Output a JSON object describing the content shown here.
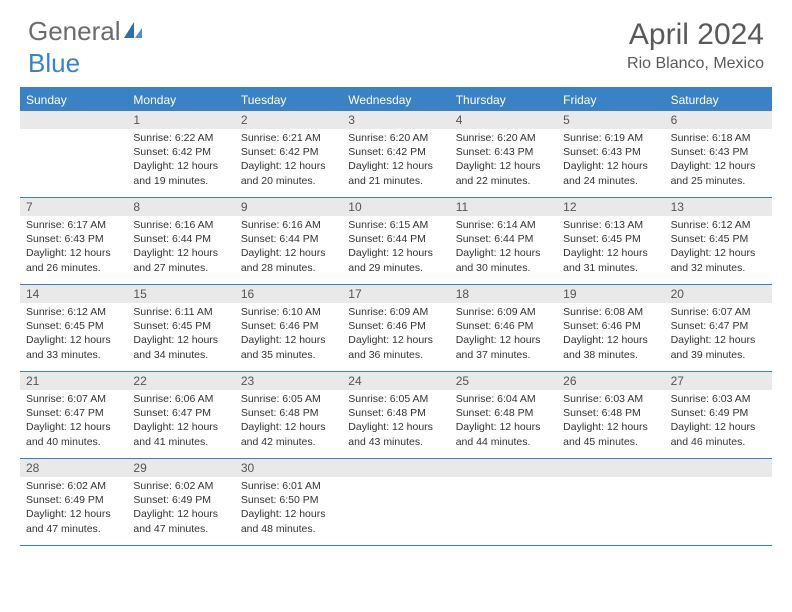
{
  "brand": {
    "part1": "General",
    "part2": "Blue"
  },
  "title": "April 2024",
  "location": "Rio Blanco, Mexico",
  "colors": {
    "accent": "#3b82c4",
    "header_bg": "#3b82c4",
    "daynum_bg": "#e9e9e9",
    "text": "#333333",
    "muted": "#5a5a5a",
    "page_bg": "#ffffff"
  },
  "day_names": [
    "Sunday",
    "Monday",
    "Tuesday",
    "Wednesday",
    "Thursday",
    "Friday",
    "Saturday"
  ],
  "weeks": [
    [
      {
        "num": "",
        "lines": []
      },
      {
        "num": "1",
        "lines": [
          "Sunrise: 6:22 AM",
          "Sunset: 6:42 PM",
          "Daylight: 12 hours and 19 minutes."
        ]
      },
      {
        "num": "2",
        "lines": [
          "Sunrise: 6:21 AM",
          "Sunset: 6:42 PM",
          "Daylight: 12 hours and 20 minutes."
        ]
      },
      {
        "num": "3",
        "lines": [
          "Sunrise: 6:20 AM",
          "Sunset: 6:42 PM",
          "Daylight: 12 hours and 21 minutes."
        ]
      },
      {
        "num": "4",
        "lines": [
          "Sunrise: 6:20 AM",
          "Sunset: 6:43 PM",
          "Daylight: 12 hours and 22 minutes."
        ]
      },
      {
        "num": "5",
        "lines": [
          "Sunrise: 6:19 AM",
          "Sunset: 6:43 PM",
          "Daylight: 12 hours and 24 minutes."
        ]
      },
      {
        "num": "6",
        "lines": [
          "Sunrise: 6:18 AM",
          "Sunset: 6:43 PM",
          "Daylight: 12 hours and 25 minutes."
        ]
      }
    ],
    [
      {
        "num": "7",
        "lines": [
          "Sunrise: 6:17 AM",
          "Sunset: 6:43 PM",
          "Daylight: 12 hours and 26 minutes."
        ]
      },
      {
        "num": "8",
        "lines": [
          "Sunrise: 6:16 AM",
          "Sunset: 6:44 PM",
          "Daylight: 12 hours and 27 minutes."
        ]
      },
      {
        "num": "9",
        "lines": [
          "Sunrise: 6:16 AM",
          "Sunset: 6:44 PM",
          "Daylight: 12 hours and 28 minutes."
        ]
      },
      {
        "num": "10",
        "lines": [
          "Sunrise: 6:15 AM",
          "Sunset: 6:44 PM",
          "Daylight: 12 hours and 29 minutes."
        ]
      },
      {
        "num": "11",
        "lines": [
          "Sunrise: 6:14 AM",
          "Sunset: 6:44 PM",
          "Daylight: 12 hours and 30 minutes."
        ]
      },
      {
        "num": "12",
        "lines": [
          "Sunrise: 6:13 AM",
          "Sunset: 6:45 PM",
          "Daylight: 12 hours and 31 minutes."
        ]
      },
      {
        "num": "13",
        "lines": [
          "Sunrise: 6:12 AM",
          "Sunset: 6:45 PM",
          "Daylight: 12 hours and 32 minutes."
        ]
      }
    ],
    [
      {
        "num": "14",
        "lines": [
          "Sunrise: 6:12 AM",
          "Sunset: 6:45 PM",
          "Daylight: 12 hours and 33 minutes."
        ]
      },
      {
        "num": "15",
        "lines": [
          "Sunrise: 6:11 AM",
          "Sunset: 6:45 PM",
          "Daylight: 12 hours and 34 minutes."
        ]
      },
      {
        "num": "16",
        "lines": [
          "Sunrise: 6:10 AM",
          "Sunset: 6:46 PM",
          "Daylight: 12 hours and 35 minutes."
        ]
      },
      {
        "num": "17",
        "lines": [
          "Sunrise: 6:09 AM",
          "Sunset: 6:46 PM",
          "Daylight: 12 hours and 36 minutes."
        ]
      },
      {
        "num": "18",
        "lines": [
          "Sunrise: 6:09 AM",
          "Sunset: 6:46 PM",
          "Daylight: 12 hours and 37 minutes."
        ]
      },
      {
        "num": "19",
        "lines": [
          "Sunrise: 6:08 AM",
          "Sunset: 6:46 PM",
          "Daylight: 12 hours and 38 minutes."
        ]
      },
      {
        "num": "20",
        "lines": [
          "Sunrise: 6:07 AM",
          "Sunset: 6:47 PM",
          "Daylight: 12 hours and 39 minutes."
        ]
      }
    ],
    [
      {
        "num": "21",
        "lines": [
          "Sunrise: 6:07 AM",
          "Sunset: 6:47 PM",
          "Daylight: 12 hours and 40 minutes."
        ]
      },
      {
        "num": "22",
        "lines": [
          "Sunrise: 6:06 AM",
          "Sunset: 6:47 PM",
          "Daylight: 12 hours and 41 minutes."
        ]
      },
      {
        "num": "23",
        "lines": [
          "Sunrise: 6:05 AM",
          "Sunset: 6:48 PM",
          "Daylight: 12 hours and 42 minutes."
        ]
      },
      {
        "num": "24",
        "lines": [
          "Sunrise: 6:05 AM",
          "Sunset: 6:48 PM",
          "Daylight: 12 hours and 43 minutes."
        ]
      },
      {
        "num": "25",
        "lines": [
          "Sunrise: 6:04 AM",
          "Sunset: 6:48 PM",
          "Daylight: 12 hours and 44 minutes."
        ]
      },
      {
        "num": "26",
        "lines": [
          "Sunrise: 6:03 AM",
          "Sunset: 6:48 PM",
          "Daylight: 12 hours and 45 minutes."
        ]
      },
      {
        "num": "27",
        "lines": [
          "Sunrise: 6:03 AM",
          "Sunset: 6:49 PM",
          "Daylight: 12 hours and 46 minutes."
        ]
      }
    ],
    [
      {
        "num": "28",
        "lines": [
          "Sunrise: 6:02 AM",
          "Sunset: 6:49 PM",
          "Daylight: 12 hours and 47 minutes."
        ]
      },
      {
        "num": "29",
        "lines": [
          "Sunrise: 6:02 AM",
          "Sunset: 6:49 PM",
          "Daylight: 12 hours and 47 minutes."
        ]
      },
      {
        "num": "30",
        "lines": [
          "Sunrise: 6:01 AM",
          "Sunset: 6:50 PM",
          "Daylight: 12 hours and 48 minutes."
        ]
      },
      {
        "num": "",
        "lines": []
      },
      {
        "num": "",
        "lines": []
      },
      {
        "num": "",
        "lines": []
      },
      {
        "num": "",
        "lines": []
      }
    ]
  ]
}
